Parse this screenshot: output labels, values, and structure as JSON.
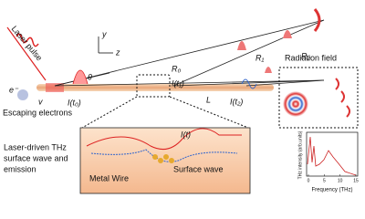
{
  "labels": {
    "laser_pulse": "Laser pulse",
    "axis_y": "y",
    "axis_z": "z",
    "r0": "R₀",
    "r1": "R₁",
    "r2": "R₂",
    "theta": "θ",
    "electron": "e⁻",
    "velocity": "v",
    "i_t0": "I(t₀)",
    "i_t1": "I(t₁)",
    "i_t2": "I(t₂)",
    "length": "L",
    "escaping_electrons": "Escaping electrons",
    "radiation_field": "Radiation field",
    "caption_line1": "Laser-driven THz",
    "caption_line2": "surface wave and",
    "caption_line3": "emission",
    "i_t": "I(t)",
    "metal_wire": "Metal Wire",
    "surface_wave": "Surface wave"
  },
  "inset": {
    "xlabel": "Frequency (THz)",
    "ylabel": "THz intensity (arb.units)",
    "xlim": [
      0,
      15
    ],
    "xticks": [
      0,
      5,
      10,
      15
    ]
  }
}
